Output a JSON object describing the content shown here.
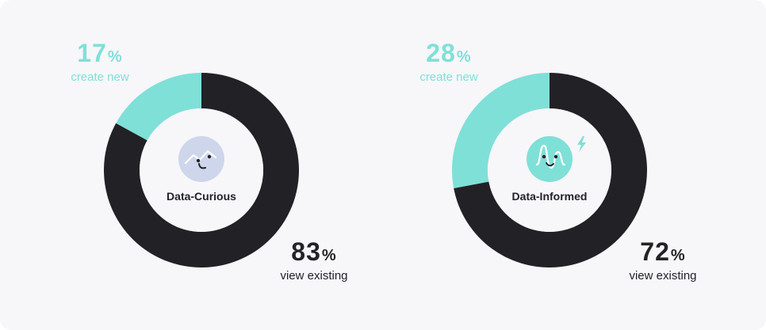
{
  "chart_data": [
    {
      "type": "pie",
      "title": "Data-Curious",
      "slices": [
        {
          "label": "create new",
          "value": 17,
          "color": "#7fe0d8"
        },
        {
          "label": "view existing",
          "value": 83,
          "color": "#222126"
        }
      ],
      "icon": "chart-face-icon",
      "icon_color": "#ced6ec"
    },
    {
      "type": "pie",
      "title": "Data-Informed",
      "slices": [
        {
          "label": "create new",
          "value": 28,
          "color": "#7fe0d8"
        },
        {
          "label": "view existing",
          "value": 72,
          "color": "#222126"
        }
      ],
      "icon": "wavy-face-lightning-icon",
      "icon_color": "#7fe0d8"
    }
  ],
  "labels": [
    {
      "create_value": "17",
      "create_unit": "%",
      "create_text": "create new",
      "view_value": "83",
      "view_unit": "%",
      "view_text": "view existing"
    },
    {
      "create_value": "28",
      "create_unit": "%",
      "create_text": "create new",
      "view_value": "72",
      "view_unit": "%",
      "view_text": "view existing"
    }
  ]
}
